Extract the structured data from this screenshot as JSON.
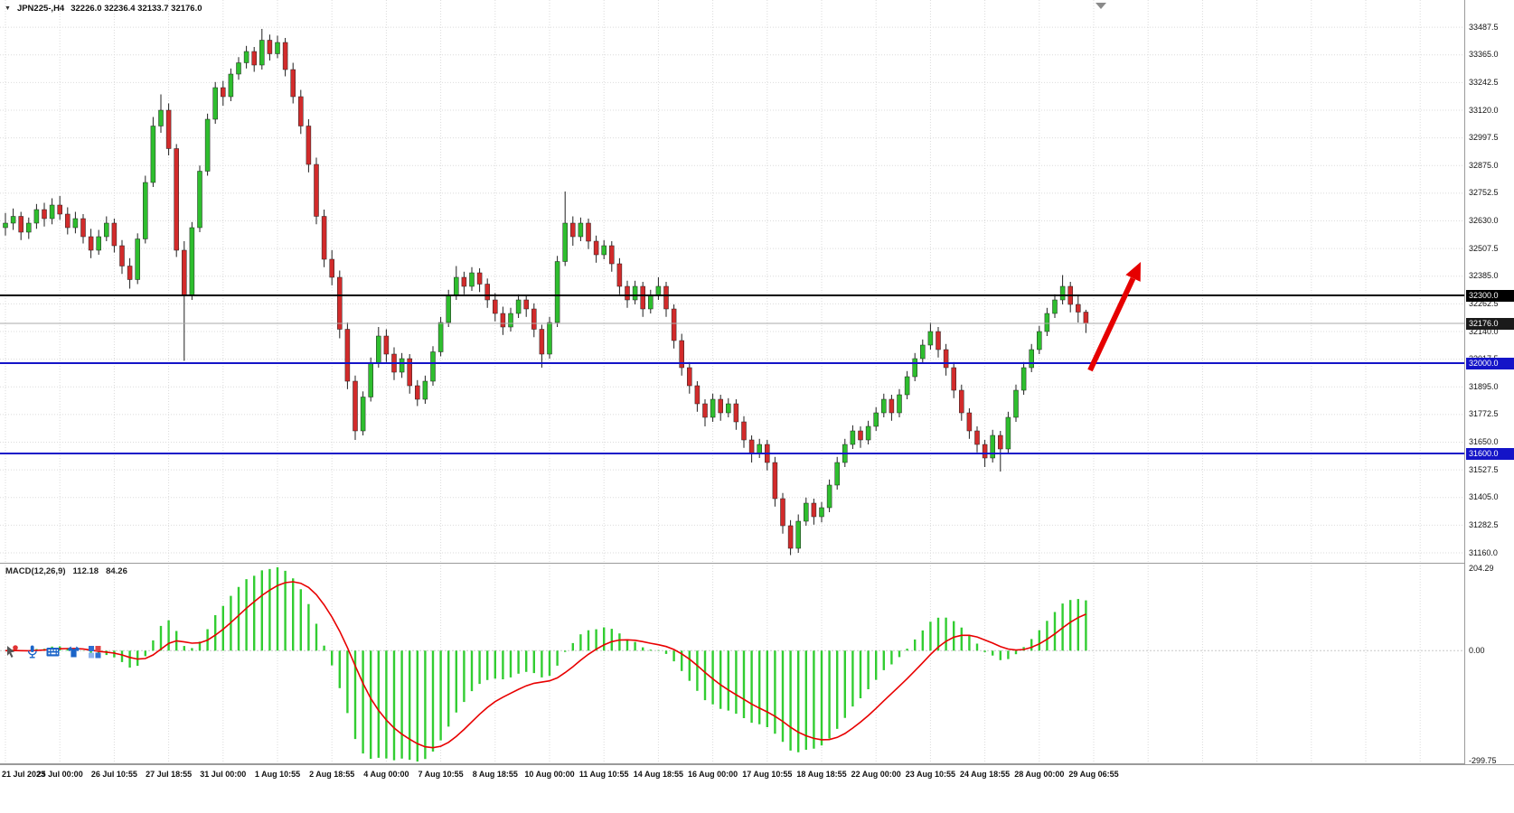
{
  "titlebar": {
    "dropdown_glyph": "▼",
    "symbol": "JPN225-,H4",
    "ohlc_text": "32226.0 32236.4 32133.7 32176.0"
  },
  "colors": {
    "bull": "#2EBE2E",
    "bear": "#D22B2B",
    "wick": "#202020",
    "grid": "#DBDBDB",
    "macd_hist": "#32CD32",
    "macd_signal": "#E80000",
    "separator": "#9A9A9A",
    "level_black": "#000000",
    "level_blue": "#1414C8",
    "axis_text": "#111111"
  },
  "overlay_icons": [
    "cursor-icon",
    "microphone-icon",
    "keyboard-icon",
    "tshirt-icon",
    "apps-grid-icon"
  ],
  "chart_data": {
    "type": "candlestick",
    "symbol": "JPN225-",
    "timeframe": "H4",
    "last_ohlc": {
      "open": "32226.0",
      "high": "32236.4",
      "low": "32133.7",
      "close": "32176.0"
    },
    "price_ticks": [
      "33487.5",
      "33365.0",
      "33242.5",
      "33120.0",
      "32997.5",
      "32875.0",
      "32752.5",
      "32630.0",
      "32507.5",
      "32385.0",
      "32262.5",
      "32140.0",
      "32017.5",
      "31895.0",
      "31772.5",
      "31650.0",
      "31527.5",
      "31405.0",
      "31282.5",
      "31160.0"
    ],
    "time_ticks": [
      "21 Jul 2023",
      "25 Jul 00:00",
      "26 Jul 10:55",
      "27 Jul 18:55",
      "31 Jul 00:00",
      "1 Aug 10:55",
      "2 Aug 18:55",
      "4 Aug 00:00",
      "7 Aug 10:55",
      "8 Aug 18:55",
      "10 Aug 00:00",
      "11 Aug 10:55",
      "14 Aug 18:55",
      "16 Aug 00:00",
      "17 Aug 10:55",
      "18 Aug 18:55",
      "22 Aug 00:00",
      "23 Aug 10:55",
      "24 Aug 18:55",
      "28 Aug 00:00",
      "29 Aug 06:55"
    ],
    "levels": [
      {
        "price": 32300,
        "label": "32300.0",
        "color": "#000000",
        "width": 2
      },
      {
        "price": 32000,
        "label": "32000.0",
        "color": "#1414C8",
        "width": 2
      },
      {
        "price": 31600,
        "label": "31600.0",
        "color": "#1414C8",
        "width": 2
      }
    ],
    "bid": {
      "price": 32176,
      "label": "32176.0",
      "line_color": "#A9A9A9",
      "box_color": "#1A1A1A"
    },
    "macd": {
      "label": "MACD(12,26,9)",
      "fast": 12,
      "slow": 26,
      "signal": 9,
      "value_main": "112.18",
      "value_signal": "84.26",
      "axis_top": "204.29",
      "axis_zero": "0.00",
      "axis_bottom": "-299.75"
    },
    "arrow": {
      "from": [
        1206,
        410
      ],
      "to": [
        1262,
        290
      ],
      "color": "#E60000"
    },
    "candles": [
      [
        32600,
        32665,
        32565,
        32620
      ],
      [
        32620,
        32685,
        32590,
        32650
      ],
      [
        32650,
        32670,
        32545,
        32580
      ],
      [
        32580,
        32645,
        32550,
        32620
      ],
      [
        32620,
        32705,
        32595,
        32680
      ],
      [
        32680,
        32710,
        32605,
        32640
      ],
      [
        32640,
        32730,
        32615,
        32700
      ],
      [
        32700,
        32740,
        32635,
        32660
      ],
      [
        32660,
        32690,
        32570,
        32600
      ],
      [
        32600,
        32670,
        32575,
        32640
      ],
      [
        32640,
        32660,
        32530,
        32560
      ],
      [
        32560,
        32595,
        32465,
        32500
      ],
      [
        32500,
        32590,
        32480,
        32560
      ],
      [
        32560,
        32650,
        32540,
        32620
      ],
      [
        32620,
        32640,
        32490,
        32520
      ],
      [
        32520,
        32545,
        32395,
        32430
      ],
      [
        32430,
        32465,
        32330,
        32370
      ],
      [
        32370,
        32575,
        32350,
        32550
      ],
      [
        32550,
        32830,
        32530,
        32800
      ],
      [
        32800,
        33090,
        32780,
        33050
      ],
      [
        33050,
        33190,
        33020,
        33120
      ],
      [
        33120,
        33150,
        32920,
        32950
      ],
      [
        32950,
        32970,
        32470,
        32500
      ],
      [
        32500,
        32540,
        32010,
        32300
      ],
      [
        32300,
        32625,
        32280,
        32600
      ],
      [
        32600,
        32875,
        32580,
        32850
      ],
      [
        32850,
        33105,
        32830,
        33080
      ],
      [
        33080,
        33245,
        33060,
        33220
      ],
      [
        33220,
        33250,
        33140,
        33180
      ],
      [
        33180,
        33305,
        33160,
        33280
      ],
      [
        33280,
        33355,
        33255,
        33330
      ],
      [
        33330,
        33405,
        33305,
        33380
      ],
      [
        33380,
        33400,
        33290,
        33320
      ],
      [
        33320,
        33480,
        33300,
        33430
      ],
      [
        33430,
        33455,
        33340,
        33370
      ],
      [
        33370,
        33450,
        33350,
        33420
      ],
      [
        33420,
        33440,
        33270,
        33300
      ],
      [
        33300,
        33330,
        33150,
        33180
      ],
      [
        33180,
        33210,
        33015,
        33050
      ],
      [
        33050,
        33080,
        32845,
        32880
      ],
      [
        32880,
        32910,
        32615,
        32650
      ],
      [
        32650,
        32680,
        32425,
        32460
      ],
      [
        32460,
        32500,
        32345,
        32380
      ],
      [
        32380,
        32410,
        32110,
        32150
      ],
      [
        32150,
        32180,
        31885,
        31920
      ],
      [
        31920,
        31945,
        31660,
        31700
      ],
      [
        31700,
        31875,
        31680,
        31850
      ],
      [
        31850,
        32025,
        31830,
        32000
      ],
      [
        32000,
        32160,
        31980,
        32120
      ],
      [
        32120,
        32150,
        32005,
        32040
      ],
      [
        32040,
        32070,
        31925,
        31960
      ],
      [
        31960,
        32045,
        31935,
        32020
      ],
      [
        32020,
        32040,
        31865,
        31900
      ],
      [
        31900,
        31925,
        31810,
        31840
      ],
      [
        31840,
        31945,
        31820,
        31920
      ],
      [
        31920,
        32075,
        31900,
        32050
      ],
      [
        32050,
        32205,
        32030,
        32180
      ],
      [
        32180,
        32325,
        32160,
        32300
      ],
      [
        32300,
        32430,
        32280,
        32380
      ],
      [
        32380,
        32405,
        32305,
        32340
      ],
      [
        32340,
        32425,
        32320,
        32400
      ],
      [
        32400,
        32420,
        32315,
        32350
      ],
      [
        32350,
        32375,
        32245,
        32280
      ],
      [
        32280,
        32310,
        32185,
        32220
      ],
      [
        32220,
        32250,
        32125,
        32160
      ],
      [
        32160,
        32245,
        32140,
        32220
      ],
      [
        32220,
        32305,
        32200,
        32280
      ],
      [
        32280,
        32300,
        32205,
        32240
      ],
      [
        32240,
        32265,
        32115,
        32150
      ],
      [
        32150,
        32170,
        31980,
        32040
      ],
      [
        32040,
        32205,
        32020,
        32180
      ],
      [
        32180,
        32475,
        32160,
        32450
      ],
      [
        32450,
        32760,
        32430,
        32620
      ],
      [
        32620,
        32650,
        32520,
        32560
      ],
      [
        32560,
        32645,
        32540,
        32620
      ],
      [
        32620,
        32640,
        32505,
        32540
      ],
      [
        32540,
        32565,
        32445,
        32480
      ],
      [
        32480,
        32545,
        32460,
        32520
      ],
      [
        32520,
        32540,
        32405,
        32440
      ],
      [
        32440,
        32465,
        32305,
        32340
      ],
      [
        32340,
        32365,
        32245,
        32280
      ],
      [
        32280,
        32365,
        32260,
        32340
      ],
      [
        32340,
        32360,
        32205,
        32240
      ],
      [
        32240,
        32325,
        32220,
        32300
      ],
      [
        32300,
        32380,
        32280,
        32340
      ],
      [
        32340,
        32360,
        32205,
        32240
      ],
      [
        32240,
        32260,
        32065,
        32100
      ],
      [
        32100,
        32130,
        31945,
        31980
      ],
      [
        31980,
        32005,
        31865,
        31900
      ],
      [
        31900,
        31920,
        31785,
        31820
      ],
      [
        31820,
        31840,
        31720,
        31760
      ],
      [
        31760,
        31865,
        31740,
        31840
      ],
      [
        31840,
        31860,
        31745,
        31780
      ],
      [
        31780,
        31845,
        31760,
        31820
      ],
      [
        31820,
        31840,
        31705,
        31740
      ],
      [
        31740,
        31765,
        31625,
        31660
      ],
      [
        31660,
        31680,
        31560,
        31600
      ],
      [
        31600,
        31665,
        31580,
        31640
      ],
      [
        31640,
        31660,
        31525,
        31560
      ],
      [
        31560,
        31585,
        31365,
        31400
      ],
      [
        31400,
        31425,
        31245,
        31280
      ],
      [
        31280,
        31305,
        31150,
        31180
      ],
      [
        31180,
        31330,
        31160,
        31300
      ],
      [
        31300,
        31405,
        31280,
        31380
      ],
      [
        31380,
        31400,
        31285,
        31320
      ],
      [
        31320,
        31385,
        31295,
        31360
      ],
      [
        31360,
        31485,
        31340,
        31460
      ],
      [
        31460,
        31585,
        31440,
        31560
      ],
      [
        31560,
        31665,
        31540,
        31640
      ],
      [
        31640,
        31725,
        31620,
        31700
      ],
      [
        31700,
        31720,
        31625,
        31660
      ],
      [
        31660,
        31745,
        31640,
        31720
      ],
      [
        31720,
        31805,
        31700,
        31780
      ],
      [
        31780,
        31865,
        31760,
        31840
      ],
      [
        31840,
        31860,
        31745,
        31780
      ],
      [
        31780,
        31885,
        31760,
        31860
      ],
      [
        31860,
        31965,
        31840,
        31940
      ],
      [
        31940,
        32045,
        31920,
        32020
      ],
      [
        32020,
        32105,
        32000,
        32080
      ],
      [
        32080,
        32180,
        32060,
        32140
      ],
      [
        32140,
        32160,
        32025,
        32060
      ],
      [
        32060,
        32085,
        31945,
        31980
      ],
      [
        31980,
        32005,
        31845,
        31880
      ],
      [
        31880,
        31905,
        31745,
        31780
      ],
      [
        31780,
        31800,
        31665,
        31700
      ],
      [
        31700,
        31720,
        31605,
        31640
      ],
      [
        31640,
        31660,
        31540,
        31580
      ],
      [
        31580,
        31705,
        31560,
        31680
      ],
      [
        31680,
        31700,
        31520,
        31620
      ],
      [
        31620,
        31785,
        31600,
        31760
      ],
      [
        31760,
        31905,
        31740,
        31880
      ],
      [
        31880,
        32005,
        31860,
        31980
      ],
      [
        31980,
        32085,
        31960,
        32060
      ],
      [
        32060,
        32165,
        32040,
        32140
      ],
      [
        32140,
        32245,
        32120,
        32220
      ],
      [
        32220,
        32305,
        32200,
        32280
      ],
      [
        32280,
        32390,
        32260,
        32340
      ],
      [
        32340,
        32360,
        32225,
        32260
      ],
      [
        32260,
        32300,
        32180,
        32226
      ],
      [
        32226,
        32236.4,
        32133.7,
        32176
      ]
    ]
  }
}
